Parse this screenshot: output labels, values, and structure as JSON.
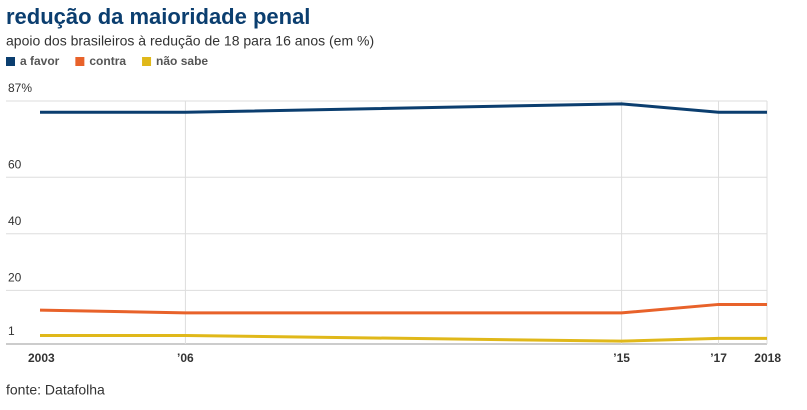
{
  "chart_data": {
    "type": "line",
    "title": "redução da maioridade penal",
    "subtitle": "apoio dos brasileiros à redução de 18 para 16 anos (em %)",
    "x": [
      2003,
      2006,
      2015,
      2017,
      2018
    ],
    "series": [
      {
        "name": "a favor",
        "color": "#0b3e6f",
        "values": [
          83,
          83,
          86,
          83,
          83
        ]
      },
      {
        "name": "contra",
        "color": "#e8622a",
        "values": [
          13,
          12,
          12,
          15,
          15
        ]
      },
      {
        "name": "não sabe",
        "color": "#e0b81a",
        "values": [
          4,
          4,
          2,
          3,
          3
        ]
      }
    ],
    "xlim": [
      2003,
      2018
    ],
    "xticks": [
      {
        "value": 2003,
        "label": "2003"
      },
      {
        "value": 2006,
        "label": "’06"
      },
      {
        "value": 2015,
        "label": "’15"
      },
      {
        "value": 2017,
        "label": "’17"
      },
      {
        "value": 2018,
        "label": "2018"
      }
    ],
    "ylim": [
      1,
      87
    ],
    "yticks": [
      1,
      20,
      40,
      60,
      {
        "value": 87,
        "label": "87%"
      }
    ],
    "grid": true,
    "legend": "top-left",
    "source": "fonte: Datafolha"
  }
}
